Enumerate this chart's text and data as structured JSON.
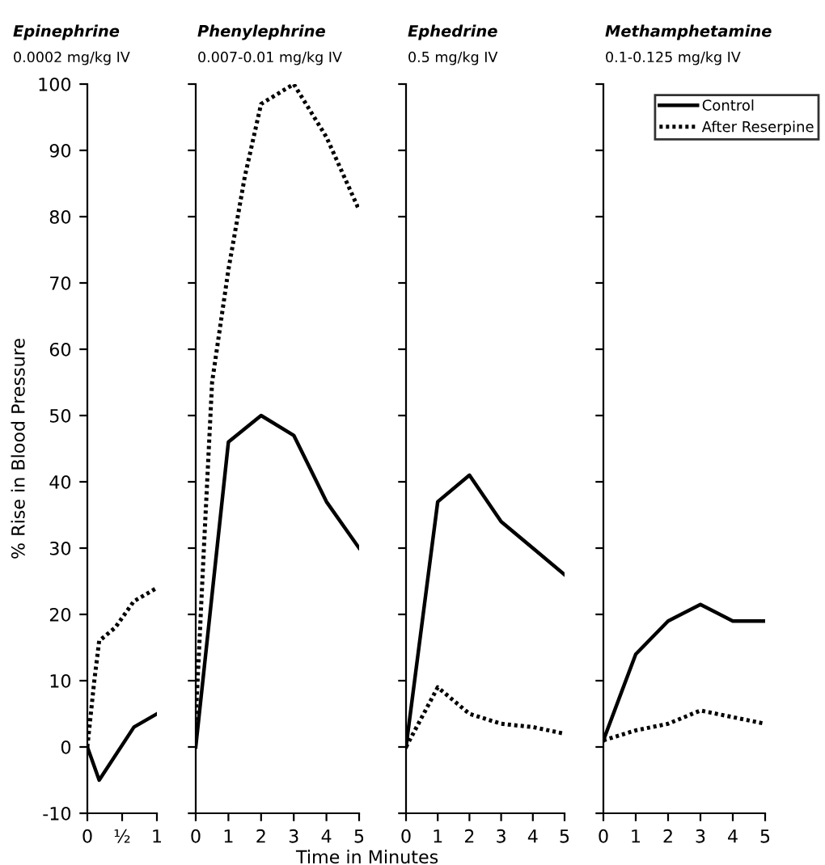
{
  "chart_data": [
    {
      "type": "line",
      "title": "Epinephrine",
      "subtitle": "0.0002 mg/kg IV",
      "ylabel": "% Rise in Blood Pressure",
      "xlim": [
        0,
        1
      ],
      "xticks": [
        0,
        {
          "value": 0.5,
          "label": "½"
        },
        1
      ],
      "ylim": [
        -10,
        100
      ],
      "yticks": [
        -10,
        0,
        10,
        20,
        30,
        40,
        50,
        60,
        70,
        80,
        90,
        100
      ],
      "grid": false,
      "series": [
        {
          "color": "#000000",
          "line_style": "solid",
          "x": [
            0,
            0.17,
            0.67,
            1
          ],
          "values": [
            0,
            -5,
            3,
            5
          ]
        },
        {
          "color": "#000000",
          "line_style": "dotted",
          "x": [
            0,
            0.1,
            0.17,
            0.4,
            0.67,
            1
          ],
          "values": [
            0,
            10,
            16,
            18,
            22,
            24
          ]
        }
      ]
    },
    {
      "type": "line",
      "title": "Phenylephrine",
      "subtitle": "0.007-0.01 mg/kg IV",
      "xlabel": "Time in Minutes",
      "xlim": [
        0,
        5
      ],
      "xticks": [
        0,
        1,
        2,
        3,
        4,
        5
      ],
      "ylim": [
        -10,
        100
      ],
      "yticks": [
        -10,
        0,
        10,
        20,
        30,
        40,
        50,
        60,
        70,
        80,
        90,
        100
      ],
      "tick_labels": "x",
      "grid": false,
      "series": [
        {
          "color": "#000000",
          "line_style": "solid",
          "x": [
            0,
            1,
            2,
            3,
            4,
            5
          ],
          "values": [
            0,
            46,
            50,
            47,
            37,
            30
          ]
        },
        {
          "color": "#000000",
          "line_style": "dotted",
          "x": [
            0,
            0.25,
            0.5,
            1,
            1.5,
            2,
            3,
            4,
            5
          ],
          "values": [
            4,
            30,
            55,
            72,
            86,
            97,
            100,
            92,
            81
          ]
        }
      ]
    },
    {
      "type": "line",
      "title": "Ephedrine",
      "subtitle": "0.5 mg/kg IV",
      "xlim": [
        0,
        5
      ],
      "xticks": [
        0,
        1,
        2,
        3,
        4,
        5
      ],
      "ylim": [
        -10,
        100
      ],
      "yticks": [
        -10,
        0,
        10,
        20,
        30,
        40,
        50,
        60,
        70,
        80,
        90,
        100
      ],
      "tick_labels": "x",
      "grid": false,
      "series": [
        {
          "color": "#000000",
          "line_style": "solid",
          "x": [
            0,
            1,
            2,
            3,
            4,
            5
          ],
          "values": [
            0,
            37,
            41,
            34,
            30,
            26
          ]
        },
        {
          "color": "#000000",
          "line_style": "dotted",
          "x": [
            0,
            1,
            2,
            3,
            4,
            5
          ],
          "values": [
            0,
            9,
            5,
            3.5,
            3,
            2
          ]
        }
      ]
    },
    {
      "type": "line",
      "title": "Methamphetamine",
      "subtitle": "0.1-0.125 mg/kg IV",
      "xlim": [
        0,
        5
      ],
      "xticks": [
        0,
        1,
        2,
        3,
        4,
        5
      ],
      "ylim": [
        -10,
        100
      ],
      "yticks": [
        -10,
        0,
        10,
        20,
        30,
        40,
        50,
        60,
        70,
        80,
        90,
        100
      ],
      "tick_labels": "x",
      "grid": false,
      "legend": "top right",
      "series": [
        {
          "name": "Control",
          "color": "#000000",
          "line_style": "solid",
          "x": [
            0,
            1,
            2,
            3,
            4,
            5
          ],
          "values": [
            1,
            14,
            19,
            21.5,
            19,
            19
          ]
        },
        {
          "name": "After Reserpine",
          "color": "#000000",
          "line_style": "dotted",
          "x": [
            0,
            1,
            2,
            3,
            4,
            5
          ],
          "values": [
            1,
            2.5,
            3.5,
            5.5,
            4.5,
            3.5
          ]
        }
      ]
    }
  ]
}
